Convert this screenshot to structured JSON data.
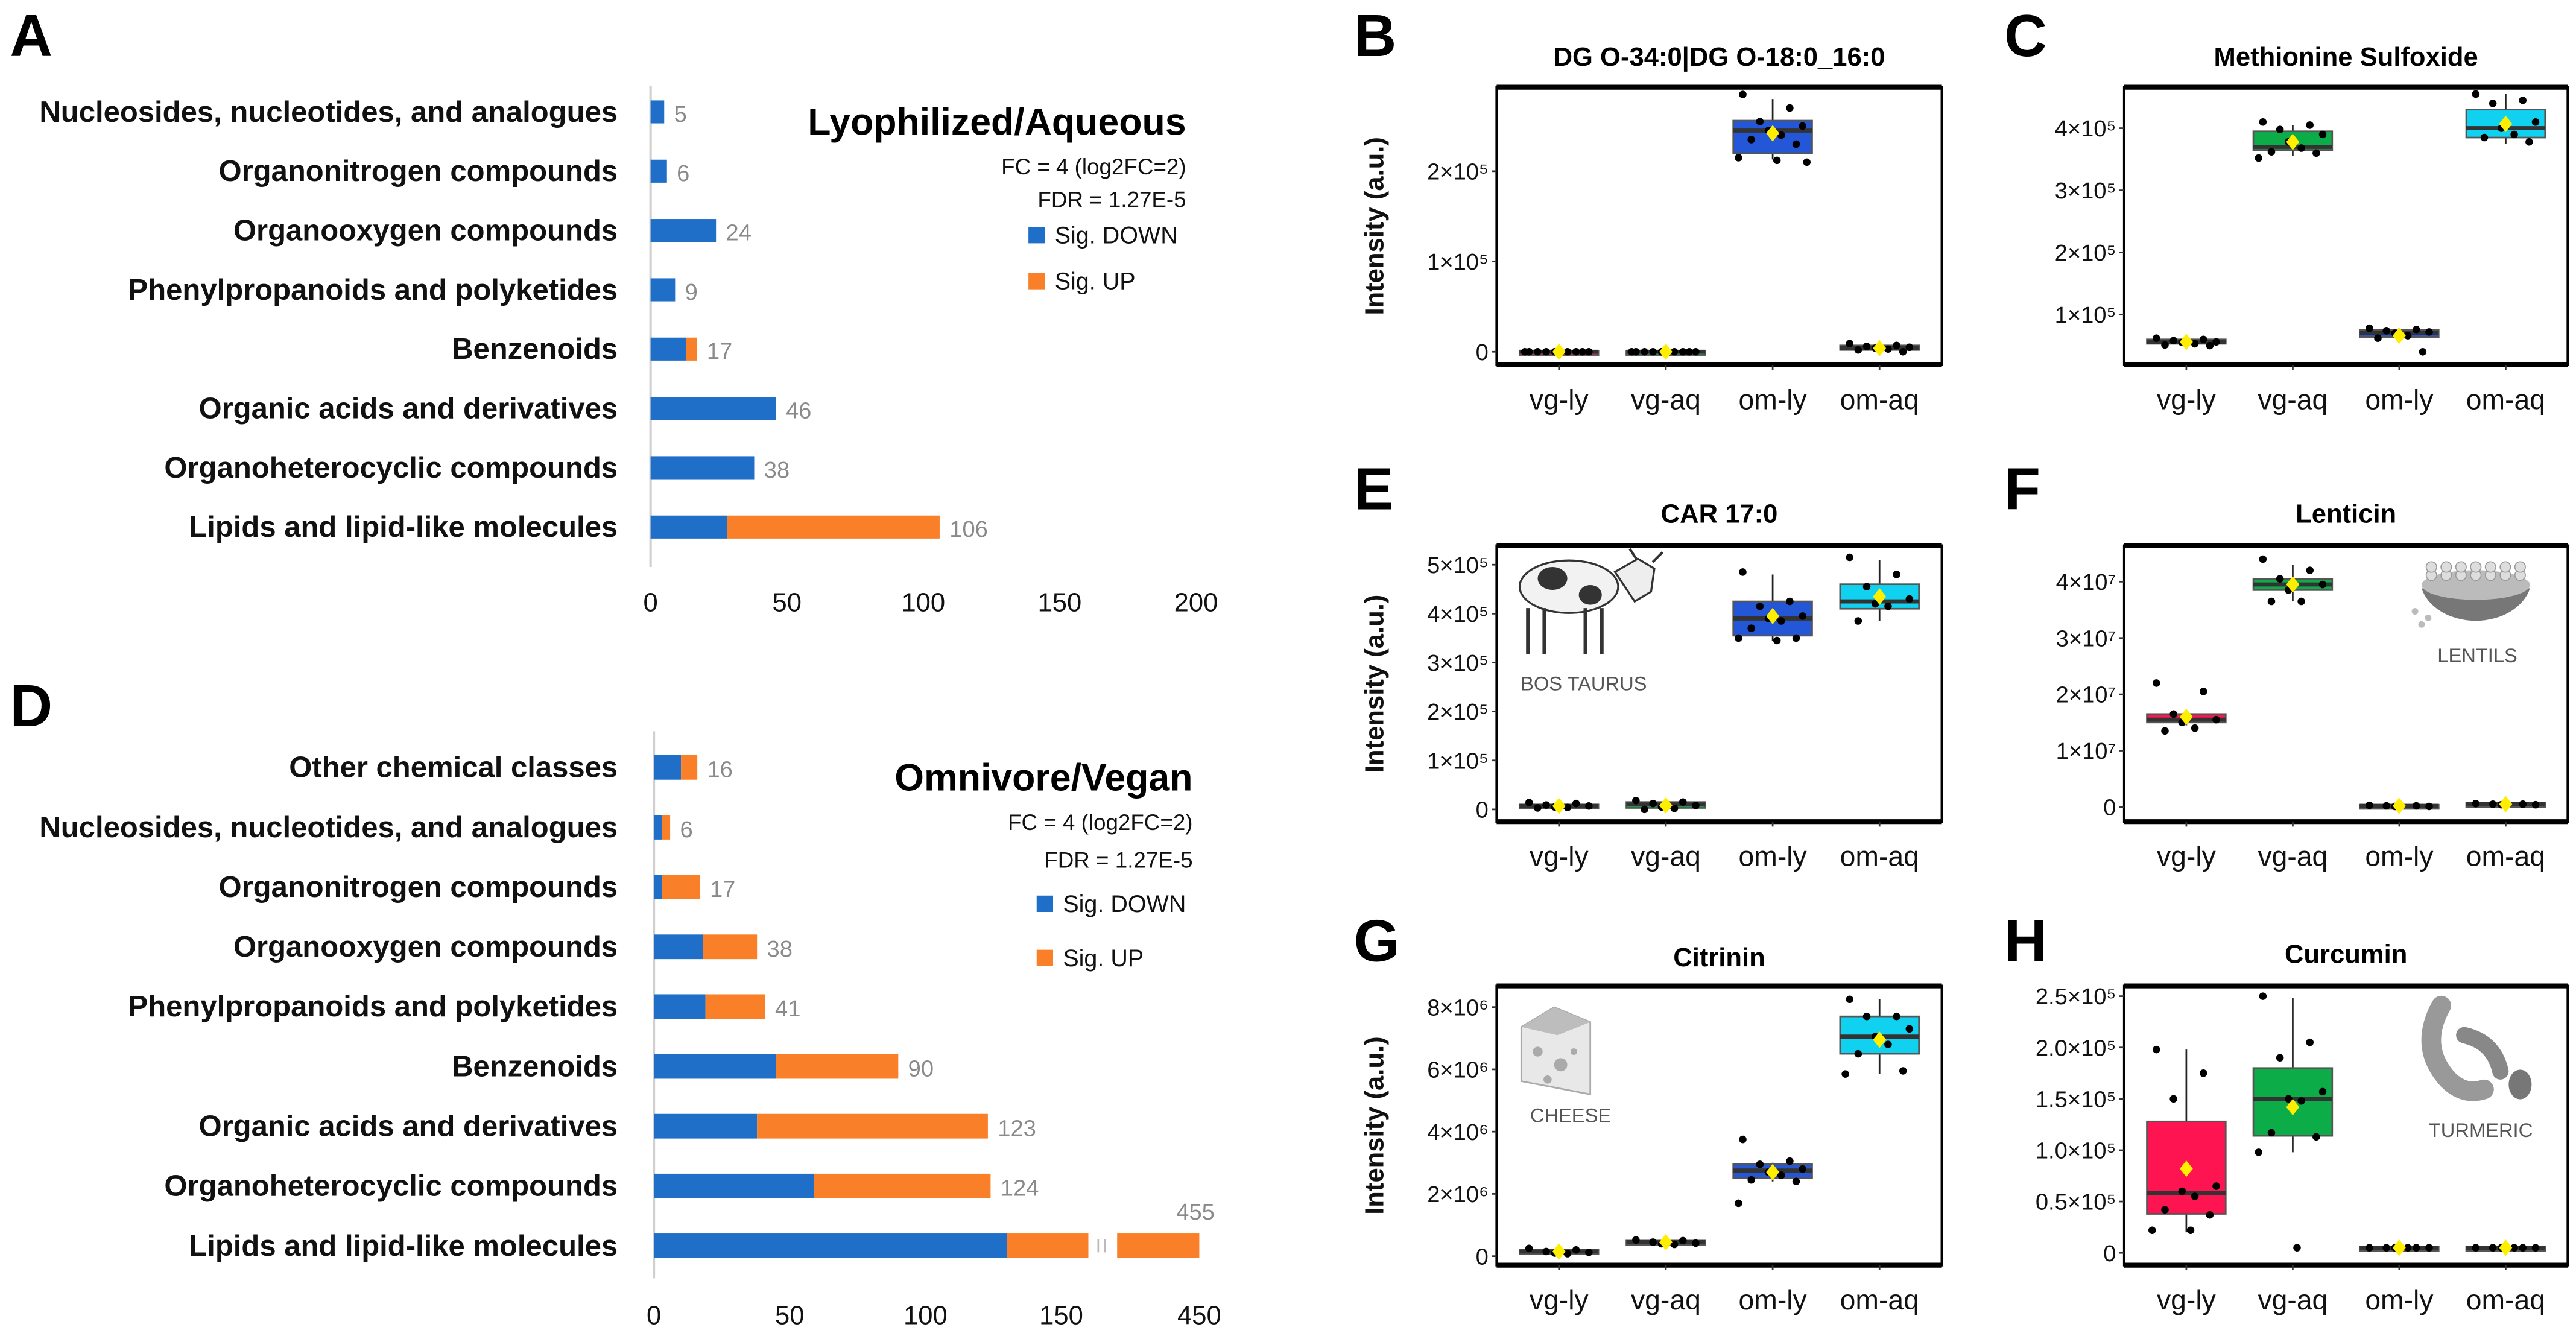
{
  "panel_letters": {
    "A": "A",
    "B": "B",
    "C": "C",
    "D": "D",
    "E": "E",
    "F": "F",
    "G": "G",
    "H": "H"
  },
  "colors": {
    "down": "#1f6fc9",
    "up": "#f98028",
    "vg-ly": "#ff1452",
    "vg-aq": "#0cad49",
    "om-ly": "#2357d8",
    "om-aq": "#10d2f0",
    "mean": "#ffee00"
  },
  "chart_data": [
    {
      "panel": "A",
      "type": "bar",
      "orientation": "horizontal",
      "stacked": true,
      "title": "Lyophilized/Aqueous",
      "notes": [
        "FC = 4 (log2FC=2)",
        "FDR = 1.27E-5"
      ],
      "categories": [
        "Nucleosides, nucleotides, and analogues",
        "Organonitrogen compounds",
        "Organooxygen compounds",
        "Phenylpropanoids and polyketides",
        "Benzenoids",
        "Organic acids and derivatives",
        "Organoheterocyclic compounds",
        "Lipids and lipid-like molecules"
      ],
      "series": [
        {
          "name": "Sig. DOWN",
          "values": [
            5,
            6,
            24,
            9,
            13,
            46,
            38,
            28
          ]
        },
        {
          "name": "Sig. UP",
          "values": [
            0,
            0,
            0,
            0,
            4,
            0,
            0,
            78
          ]
        }
      ],
      "totals": [
        "5",
        "6",
        "24",
        "9",
        "17",
        "46",
        "38",
        "106"
      ],
      "xlim": [
        0,
        200
      ],
      "xticks": [
        "0",
        "50",
        "100",
        "150",
        "200"
      ],
      "legend": "top-right"
    },
    {
      "panel": "D",
      "type": "bar",
      "orientation": "horizontal",
      "stacked": true,
      "title": "Omnivore/Vegan",
      "notes": [
        "FC = 4 (log2FC=2)",
        "FDR = 1.27E-5"
      ],
      "categories": [
        "Other chemical classes",
        "Nucleosides, nucleotides, and analogues",
        "Organonitrogen compounds",
        "Organooxygen compounds",
        "Phenylpropanoids and polyketides",
        "Benzenoids",
        "Organic acids and derivatives",
        "Organoheterocyclic compounds",
        "Lipids and lipid-like molecules"
      ],
      "series": [
        {
          "name": "Sig. DOWN",
          "values": [
            10,
            3,
            3,
            18,
            19,
            45,
            38,
            59,
            130
          ]
        },
        {
          "name": "Sig. UP",
          "values": [
            6,
            3,
            14,
            20,
            22,
            45,
            85,
            65,
            325
          ]
        }
      ],
      "totals": [
        "16",
        "6",
        "17",
        "38",
        "41",
        "90",
        "123",
        "124",
        "455"
      ],
      "axis_break": [
        160,
        420
      ],
      "xticks": [
        "0",
        "50",
        "100",
        "150",
        "450"
      ],
      "legend": "top-right"
    },
    {
      "panel": "B",
      "type": "box",
      "title": "DG O-34:0|DG O-18:0_16:0",
      "ylabel": "Intensity (a.u.)",
      "categories": [
        "vg-ly",
        "vg-aq",
        "om-ly",
        "om-aq"
      ],
      "ylim": [
        -14500,
        293000
      ],
      "yticks": [
        {
          "value": 0,
          "label": "0"
        },
        {
          "value": 100000,
          "label": "1×10⁵"
        },
        {
          "value": 200000,
          "label": "2×10⁵"
        }
      ],
      "groups": [
        {
          "q1": -1000,
          "median": 0,
          "q3": 1000,
          "lo": -1000,
          "hi": 1000,
          "mean": 0,
          "points": [
            0,
            0,
            0,
            0,
            0,
            0,
            0,
            0,
            0
          ]
        },
        {
          "q1": -1000,
          "median": 0,
          "q3": 1000,
          "lo": -1000,
          "hi": 1000,
          "mean": 0,
          "points": [
            0,
            0,
            0,
            0,
            0,
            0,
            0,
            0,
            0
          ]
        },
        {
          "q1": 220000,
          "median": 245000,
          "q3": 256000,
          "lo": 213000,
          "hi": 280000,
          "mean": 242000,
          "points": [
            285000,
            270000,
            255000,
            250000,
            245000,
            240000,
            235000,
            230000,
            215000,
            212000,
            210000
          ]
        },
        {
          "q1": 2000,
          "median": 4000,
          "q3": 7000,
          "lo": 0,
          "hi": 9000,
          "mean": 4000,
          "points": [
            9000,
            7000,
            6000,
            5000,
            4000,
            3000,
            2000,
            0
          ]
        }
      ]
    },
    {
      "panel": "C",
      "type": "box",
      "title": "Methionine Sulfoxide",
      "ylabel": "",
      "categories": [
        "vg-ly",
        "vg-aq",
        "om-ly",
        "om-aq"
      ],
      "ylim": [
        19000,
        466000
      ],
      "yticks": [
        {
          "value": 100000,
          "label": "1×10⁵"
        },
        {
          "value": 200000,
          "label": "2×10⁵"
        },
        {
          "value": 300000,
          "label": "3×10⁵"
        },
        {
          "value": 400000,
          "label": "4×10⁵"
        }
      ],
      "groups": [
        {
          "q1": 53000,
          "median": 56000,
          "q3": 60000,
          "lo": 50000,
          "hi": 62000,
          "mean": 56000,
          "points": [
            62000,
            60000,
            58000,
            56000,
            55000,
            53000,
            51000,
            50000
          ]
        },
        {
          "q1": 365000,
          "median": 370000,
          "q3": 395000,
          "lo": 355000,
          "hi": 405000,
          "mean": 378000,
          "points": [
            410000,
            405000,
            398000,
            390000,
            378000,
            368000,
            362000,
            360000,
            352000
          ]
        },
        {
          "q1": 64000,
          "median": 70000,
          "q3": 75000,
          "lo": 62000,
          "hi": 78000,
          "mean": 66000,
          "points": [
            78000,
            76000,
            74000,
            72000,
            70000,
            66000,
            62000,
            40000
          ]
        },
        {
          "q1": 385000,
          "median": 400000,
          "q3": 430000,
          "lo": 375000,
          "hi": 455000,
          "mean": 407000,
          "points": [
            455000,
            445000,
            440000,
            410000,
            400000,
            390000,
            385000,
            378000
          ]
        }
      ]
    },
    {
      "panel": "E",
      "type": "box",
      "title": "CAR 17:0",
      "ylabel": "Intensity (a.u.)",
      "categories": [
        "vg-ly",
        "vg-aq",
        "om-ly",
        "om-aq"
      ],
      "ylim": [
        -25000,
        539000
      ],
      "yticks": [
        {
          "value": 0,
          "label": "0"
        },
        {
          "value": 100000,
          "label": "1×10⁵"
        },
        {
          "value": 200000,
          "label": "2×10⁵"
        },
        {
          "value": 300000,
          "label": "3×10⁵"
        },
        {
          "value": 400000,
          "label": "4×10⁵"
        },
        {
          "value": 500000,
          "label": "5×10⁵"
        }
      ],
      "groups": [
        {
          "q1": 4000,
          "median": 7000,
          "q3": 10000,
          "lo": 2000,
          "hi": 14000,
          "mean": 7000,
          "points": [
            14000,
            12000,
            9000,
            7000,
            5000,
            4000,
            3000
          ]
        },
        {
          "q1": 3000,
          "median": 10000,
          "q3": 15000,
          "lo": 0,
          "hi": 18000,
          "mean": 8000,
          "points": [
            18000,
            15000,
            12000,
            8000,
            5000,
            2000,
            0
          ]
        },
        {
          "q1": 355000,
          "median": 390000,
          "q3": 425000,
          "lo": 345000,
          "hi": 480000,
          "mean": 395000,
          "points": [
            485000,
            425000,
            415000,
            395000,
            390000,
            385000,
            370000,
            350000,
            350000,
            345000
          ]
        },
        {
          "q1": 410000,
          "median": 425000,
          "q3": 460000,
          "lo": 385000,
          "hi": 510000,
          "mean": 435000,
          "points": [
            515000,
            480000,
            455000,
            430000,
            420000,
            415000,
            385000
          ]
        }
      ],
      "illustration": {
        "kind": "cow",
        "caption": "BOS TAURUS"
      }
    },
    {
      "panel": "F",
      "type": "box",
      "title": "Lenticin",
      "ylabel": "",
      "categories": [
        "vg-ly",
        "vg-aq",
        "om-ly",
        "om-aq"
      ],
      "ylim": [
        -2600000,
        46400000
      ],
      "yticks": [
        {
          "value": 0,
          "label": "0"
        },
        {
          "value": 10000000,
          "label": "1×10⁷"
        },
        {
          "value": 20000000,
          "label": "2×10⁷"
        },
        {
          "value": 30000000,
          "label": "3×10⁷"
        },
        {
          "value": 40000000,
          "label": "4×10⁷"
        }
      ],
      "groups": [
        {
          "q1": 15000000,
          "median": 15500000,
          "q3": 16500000,
          "lo": 14500000,
          "hi": 16500000,
          "mean": 16000000,
          "points": [
            22000000,
            20500000,
            16500000,
            15500000,
            15000000,
            14000000,
            13500000
          ]
        },
        {
          "q1": 38500000,
          "median": 39500000,
          "q3": 40500000,
          "lo": 36500000,
          "hi": 43000000,
          "mean": 39500000,
          "points": [
            44000000,
            42000000,
            40500000,
            39500000,
            38500000,
            36500000,
            36500000
          ]
        },
        {
          "q1": 0,
          "median": 200000,
          "q3": 400000,
          "lo": 0,
          "hi": 400000,
          "mean": 200000,
          "points": [
            300000,
            200000,
            200000,
            100000,
            100000
          ]
        },
        {
          "q1": 300000,
          "median": 500000,
          "q3": 700000,
          "lo": 300000,
          "hi": 700000,
          "mean": 500000,
          "points": [
            600000,
            500000,
            500000,
            400000,
            400000
          ]
        }
      ],
      "illustration": {
        "kind": "lentils",
        "caption": "LENTILS"
      }
    },
    {
      "panel": "G",
      "type": "box",
      "title": "Citrinin",
      "ylabel": "Intensity (a.u.)",
      "categories": [
        "vg-ly",
        "vg-aq",
        "om-ly",
        "om-aq"
      ],
      "ylim": [
        -290000,
        8680000
      ],
      "yticks": [
        {
          "value": 0,
          "label": "0"
        },
        {
          "value": 2000000,
          "label": "2×10⁶"
        },
        {
          "value": 4000000,
          "label": "4×10⁶"
        },
        {
          "value": 6000000,
          "label": "6×10⁶"
        },
        {
          "value": 8000000,
          "label": "8×10⁶"
        }
      ],
      "groups": [
        {
          "q1": 100000,
          "median": 150000,
          "q3": 200000,
          "lo": 80000,
          "hi": 250000,
          "mean": 150000,
          "points": [
            250000,
            200000,
            150000,
            120000,
            100000,
            80000
          ]
        },
        {
          "q1": 400000,
          "median": 450000,
          "q3": 500000,
          "lo": 380000,
          "hi": 520000,
          "mean": 450000,
          "points": [
            520000,
            500000,
            450000,
            420000,
            400000,
            380000
          ]
        },
        {
          "q1": 2500000,
          "median": 2750000,
          "q3": 2950000,
          "lo": 2400000,
          "hi": 3000000,
          "mean": 2700000,
          "points": [
            3750000,
            3050000,
            2950000,
            2800000,
            2700000,
            2600000,
            2450000,
            2400000,
            1700000
          ]
        },
        {
          "q1": 6500000,
          "median": 7050000,
          "q3": 7700000,
          "lo": 5850000,
          "hi": 8250000,
          "mean": 6950000,
          "points": [
            8250000,
            7700000,
            7700000,
            7300000,
            7050000,
            6800000,
            6500000,
            5950000,
            5850000
          ]
        }
      ],
      "illustration": {
        "kind": "cheese",
        "caption": "CHEESE"
      }
    },
    {
      "panel": "H",
      "type": "box",
      "title": "Curcumin",
      "ylabel": "",
      "categories": [
        "vg-ly",
        "vg-aq",
        "om-ly",
        "om-aq"
      ],
      "ylim": [
        -12000,
        260000
      ],
      "yticks": [
        {
          "value": 0,
          "label": "0"
        },
        {
          "value": 50000,
          "label": "0.5×10⁵"
        },
        {
          "value": 100000,
          "label": "1.0×10⁵"
        },
        {
          "value": 150000,
          "label": "1.5×10⁵"
        },
        {
          "value": 200000,
          "label": "2.0×10⁵"
        },
        {
          "value": 250000,
          "label": "2.5×10⁵"
        }
      ],
      "groups": [
        {
          "q1": 38000,
          "median": 58000,
          "q3": 128000,
          "lo": 20000,
          "hi": 198000,
          "mean": 82000,
          "points": [
            198000,
            175000,
            150000,
            65000,
            60000,
            55000,
            42000,
            37000,
            22000,
            22000
          ]
        },
        {
          "q1": 114000,
          "median": 150000,
          "q3": 180000,
          "lo": 98000,
          "hi": 248000,
          "mean": 142000,
          "points": [
            250000,
            205000,
            190000,
            157000,
            150000,
            148000,
            117000,
            113000,
            98000,
            5000
          ]
        },
        {
          "q1": 4000,
          "median": 5000,
          "q3": 6000,
          "lo": 4000,
          "hi": 6000,
          "mean": 5000,
          "points": [
            5000,
            5000,
            5000,
            5000,
            5000,
            5000
          ]
        },
        {
          "q1": 4000,
          "median": 5000,
          "q3": 6000,
          "lo": 4000,
          "hi": 6000,
          "mean": 5000,
          "points": [
            5000,
            5000,
            5000,
            5000,
            5000,
            5000
          ]
        }
      ],
      "illustration": {
        "kind": "turmeric",
        "caption": "TURMERIC"
      }
    }
  ]
}
